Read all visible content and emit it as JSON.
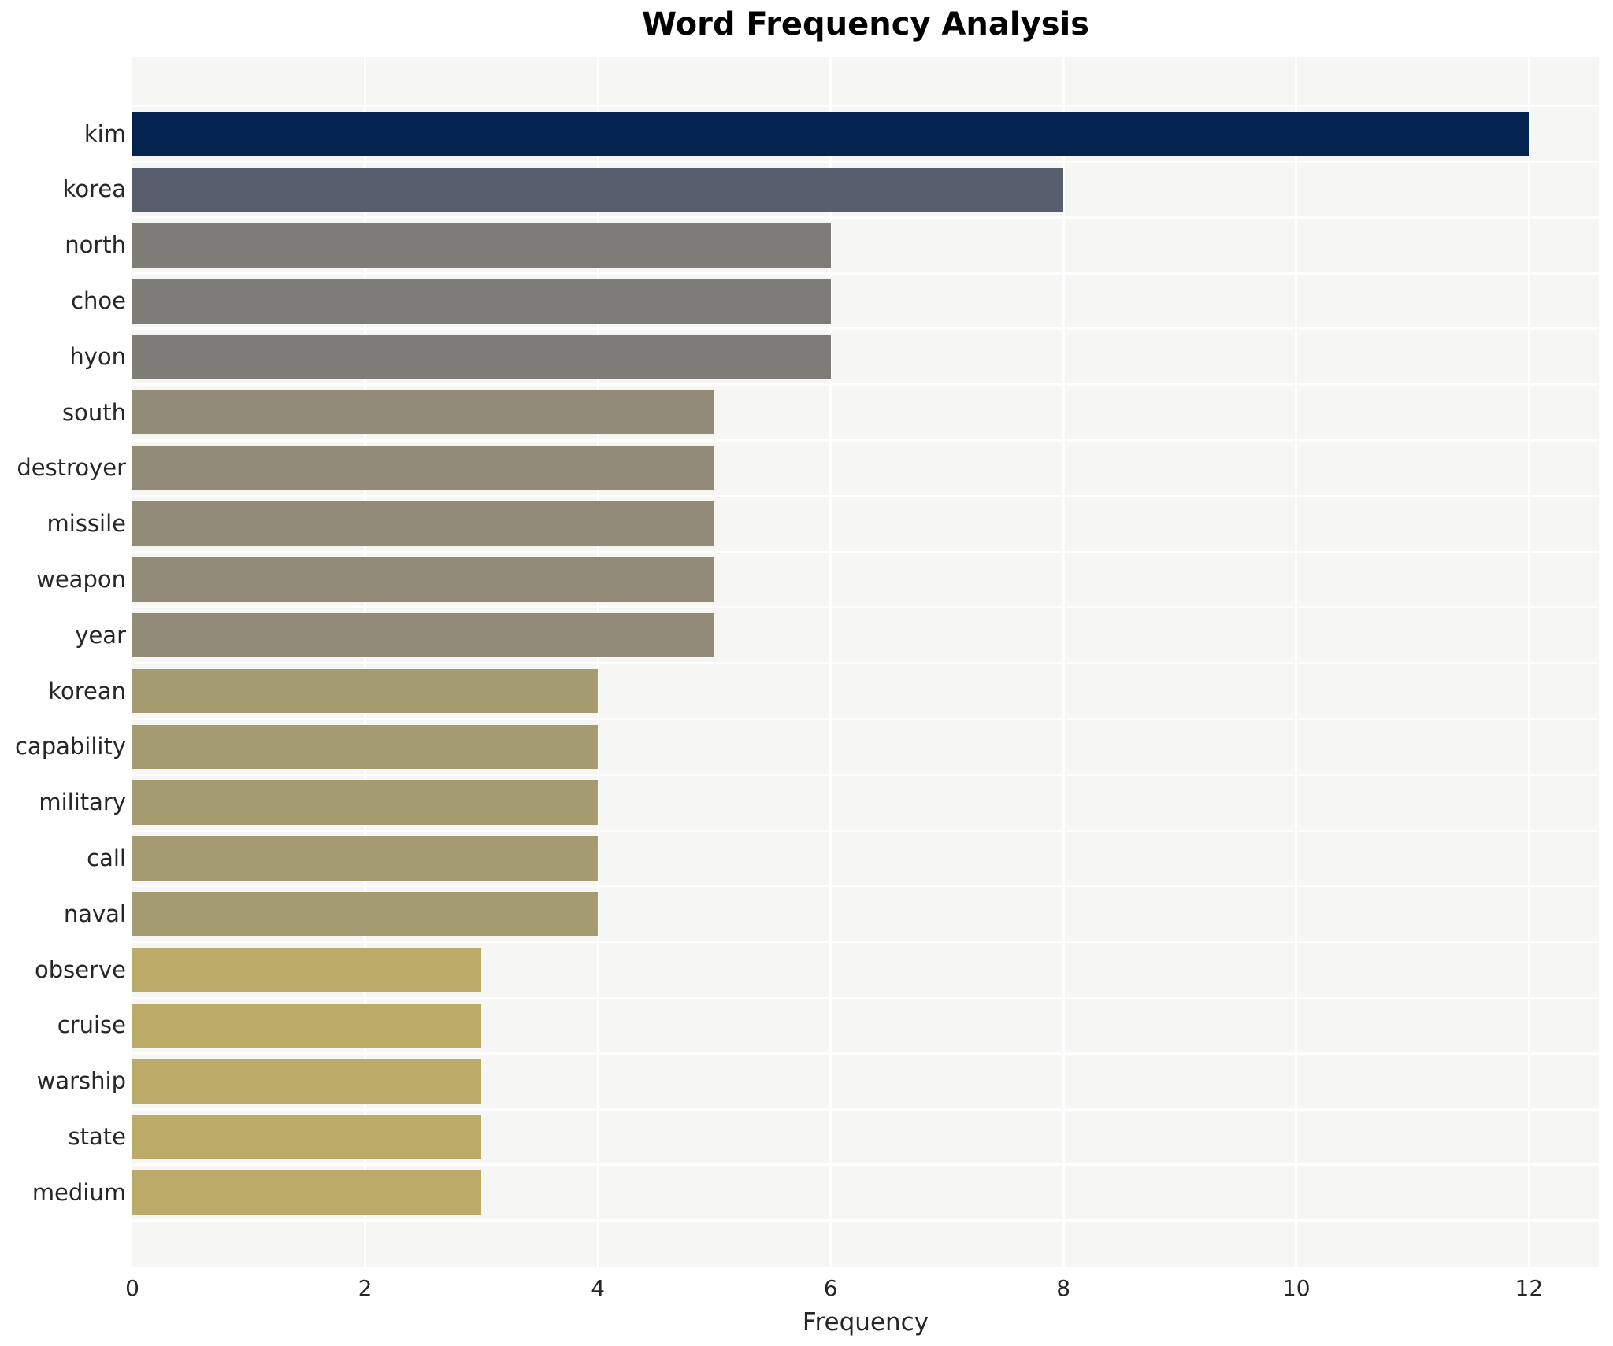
{
  "chart_data": {
    "type": "bar",
    "orientation": "horizontal",
    "title": "Word Frequency Analysis",
    "xlabel": "Frequency",
    "ylabel": "",
    "categories": [
      "kim",
      "korea",
      "north",
      "choe",
      "hyon",
      "south",
      "destroyer",
      "missile",
      "weapon",
      "year",
      "korean",
      "capability",
      "military",
      "call",
      "naval",
      "observe",
      "cruise",
      "warship",
      "state",
      "medium"
    ],
    "values": [
      12,
      8,
      6,
      6,
      6,
      5,
      5,
      5,
      5,
      5,
      4,
      4,
      4,
      4,
      4,
      3,
      3,
      3,
      3,
      3
    ],
    "bar_colors": [
      "#04234e",
      "#575e6d",
      "#7e7c77",
      "#7e7c77",
      "#7e7c77",
      "#928b78",
      "#928b78",
      "#928b78",
      "#928b78",
      "#928b78",
      "#a59b71",
      "#a59b71",
      "#a59b71",
      "#a59b71",
      "#a59b71",
      "#bcaa69",
      "#bcaa69",
      "#bcaa69",
      "#bcaa69",
      "#bcaa69"
    ],
    "xticks": [
      0,
      2,
      4,
      6,
      8,
      10,
      12
    ],
    "xlim": [
      0,
      12.6
    ],
    "grid": true,
    "gridline_color": "#ffffff",
    "plot_background": "#f6f6f4",
    "figure_background": "#ffffff",
    "title_color": "#000000",
    "tick_label_color": "#262626",
    "legend": "none"
  }
}
